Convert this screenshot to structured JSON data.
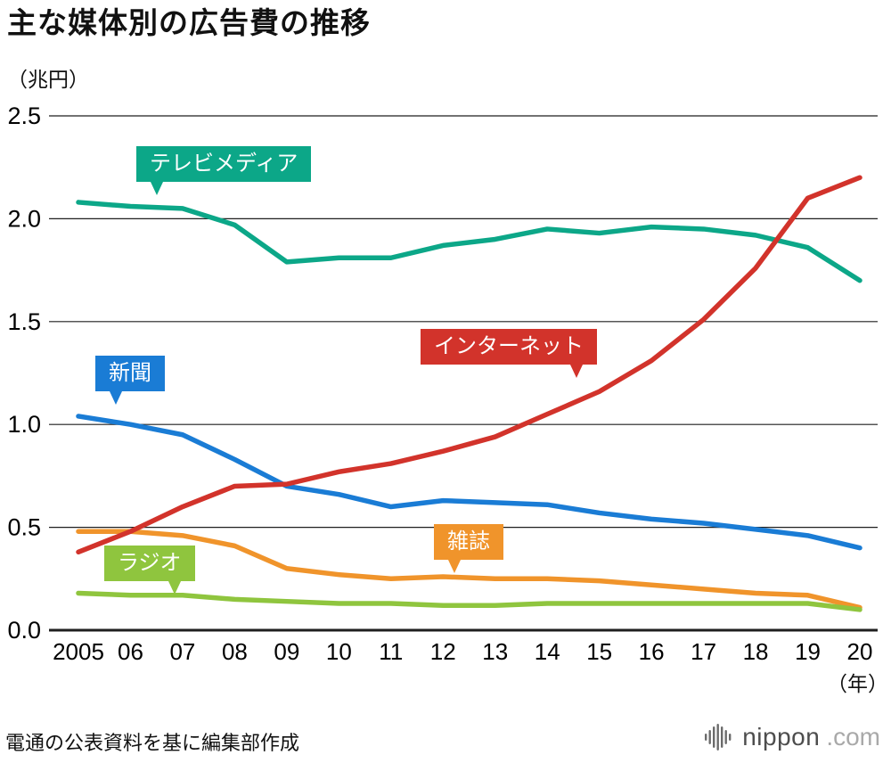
{
  "title": "主な媒体別の広告費の推移",
  "y_unit": "（兆円）",
  "x_unit": "（年）",
  "source": "電通の公表資料を基に編集部作成",
  "logo": {
    "icon": "soundwave-bars-icon",
    "name": "nippon",
    "tld": ".com"
  },
  "chart_data": {
    "type": "line",
    "title": "主な媒体別の広告費の推移",
    "ylabel": "（兆円）",
    "xlabel": "（年）",
    "ylim": [
      0,
      2.5
    ],
    "grid": "horizontal",
    "legend": "callout-labels-on-plot",
    "x": [
      2005,
      2006,
      2007,
      2008,
      2009,
      2010,
      2011,
      2012,
      2013,
      2014,
      2015,
      2016,
      2017,
      2018,
      2019,
      2020
    ],
    "x_tick_labels": [
      "2005",
      "06",
      "07",
      "08",
      "09",
      "10",
      "11",
      "12",
      "13",
      "14",
      "15",
      "16",
      "17",
      "18",
      "19",
      "20"
    ],
    "y_ticks": [
      0,
      0.5,
      1.0,
      1.5,
      2.0,
      2.5
    ],
    "y_tick_labels": [
      "0.0",
      "0.5",
      "1.0",
      "1.5",
      "2.0",
      "2.5"
    ],
    "series": [
      {
        "name": "テレビメディア",
        "color": "#0CA788",
        "values": [
          2.08,
          2.06,
          2.05,
          1.97,
          1.79,
          1.81,
          1.81,
          1.87,
          1.9,
          1.95,
          1.93,
          1.96,
          1.95,
          1.92,
          1.86,
          1.7
        ]
      },
      {
        "name": "新聞",
        "color": "#1A7CD5",
        "values": [
          1.04,
          1.0,
          0.95,
          0.83,
          0.7,
          0.66,
          0.6,
          0.63,
          0.62,
          0.61,
          0.57,
          0.54,
          0.52,
          0.49,
          0.46,
          0.4
        ]
      },
      {
        "name": "雑誌",
        "color": "#F0942B",
        "values": [
          0.48,
          0.48,
          0.46,
          0.41,
          0.3,
          0.27,
          0.25,
          0.26,
          0.25,
          0.25,
          0.24,
          0.22,
          0.2,
          0.18,
          0.17,
          0.11
        ]
      },
      {
        "name": "ラジオ",
        "color": "#8FC53E",
        "values": [
          0.18,
          0.17,
          0.17,
          0.15,
          0.14,
          0.13,
          0.13,
          0.12,
          0.12,
          0.13,
          0.13,
          0.13,
          0.13,
          0.13,
          0.13,
          0.1
        ]
      },
      {
        "name": "インターネット",
        "color": "#D2332B",
        "values": [
          0.38,
          0.48,
          0.6,
          0.7,
          0.71,
          0.77,
          0.81,
          0.87,
          0.94,
          1.05,
          1.16,
          1.31,
          1.51,
          1.76,
          2.1,
          2.2
        ]
      }
    ]
  }
}
